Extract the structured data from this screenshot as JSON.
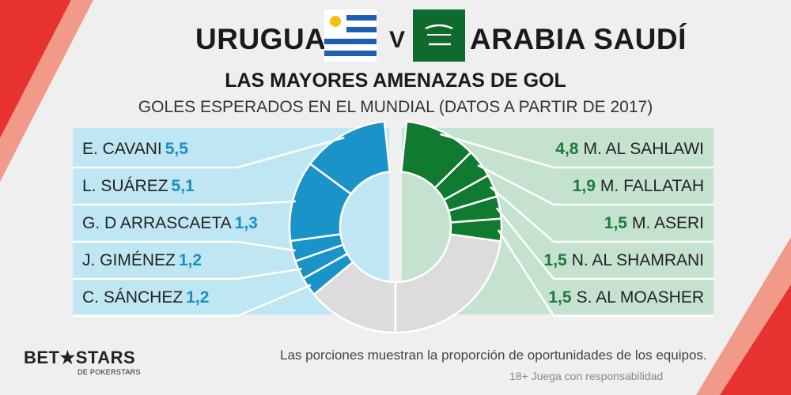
{
  "header": {
    "team_left": "URUGUAY",
    "versus": "V",
    "team_right": "ARABIA SAUDÍ",
    "subtitle": "LAS MAYORES AMENAZAS DE GOL",
    "caption": "GOLES ESPERADOS EN EL MUNDIAL (DATOS A PARTIR DE 2017)"
  },
  "footer": {
    "note": "Las porciones muestran la proporción de oportunidades de los equipos.",
    "responsible": "18+ Juega con responsabilidad",
    "logo_main": "BET★STARS",
    "logo_sub": "DE POKERSTARS"
  },
  "colors": {
    "uruguay_slice": "#1a93c9",
    "uruguay_panel": "#bfe6f3",
    "saudi_slice": "#0f7a30",
    "saudi_panel": "#c4e2cf",
    "remainder": "#dcdcdc"
  },
  "chart_data": [
    {
      "type": "pie",
      "title": "URUGUAY",
      "series": [
        {
          "name": "E. CAVANI",
          "value": 5.5
        },
        {
          "name": "L. SUÁREZ",
          "value": 5.1
        },
        {
          "name": "G. D ARRASCAETA",
          "value": 1.3
        },
        {
          "name": "J. GIMÉNEZ",
          "value": 1.2
        },
        {
          "name": "C. SÁNCHEZ",
          "value": 1.2
        }
      ],
      "value_labels": [
        "5,5",
        "5,1",
        "1,3",
        "1,2",
        "1,2"
      ]
    },
    {
      "type": "pie",
      "title": "ARABIA SAUDÍ",
      "series": [
        {
          "name": "M. AL SAHLAWI",
          "value": 4.8
        },
        {
          "name": "M. FALLATAH",
          "value": 1.9
        },
        {
          "name": "M. ASERI",
          "value": 1.5
        },
        {
          "name": "N. AL SHAMRANI",
          "value": 1.5
        },
        {
          "name": "S. AL MOASHER",
          "value": 1.5
        }
      ],
      "value_labels": [
        "4,8",
        "1,9",
        "1,5",
        "1,5",
        "1,5"
      ]
    }
  ]
}
